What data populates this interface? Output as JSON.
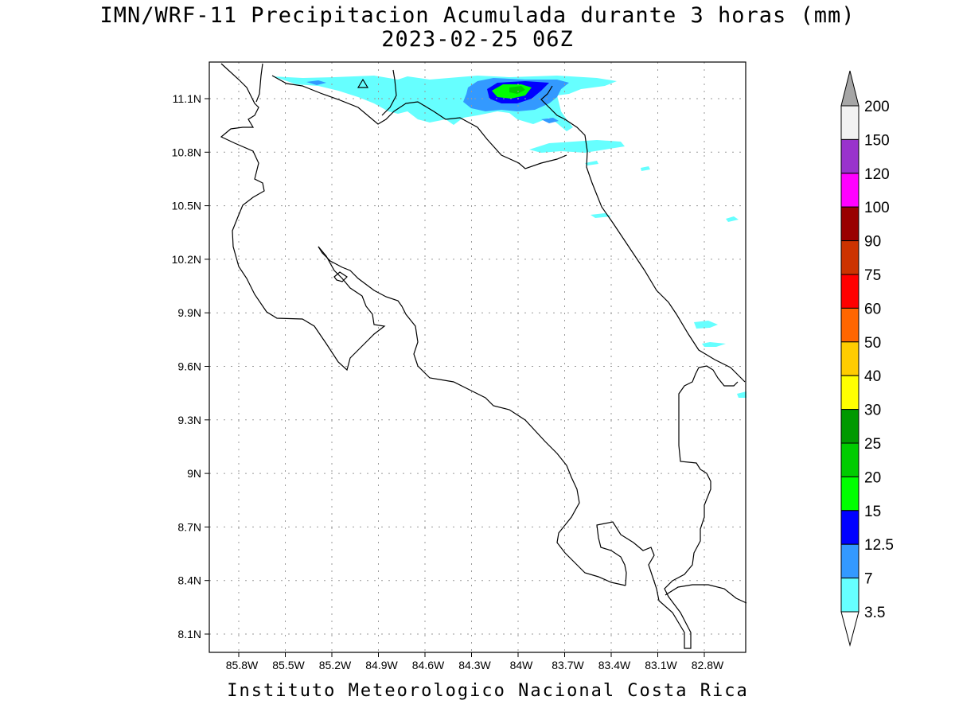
{
  "title": {
    "line1": "IMN/WRF-11 Precipitacion Acumulada durante 3 horas (mm)",
    "line2": "2023-02-25 06Z"
  },
  "footer": "Instituto Meteorologico Nacional Costa Rica",
  "map": {
    "lat_ticks": [
      "11.1N",
      "10.8N",
      "10.5N",
      "10.2N",
      "9.9N",
      "9.6N",
      "9.3N",
      "9N",
      "8.7N",
      "8.4N",
      "8.1N"
    ],
    "lon_ticks": [
      "85.8W",
      "85.5W",
      "85.2W",
      "84.9W",
      "84.6W",
      "84.3W",
      "84W",
      "83.7W",
      "83.4W",
      "83.1W",
      "82.8W"
    ],
    "grid": true
  },
  "colorbar": {
    "labels": [
      "200",
      "150",
      "120",
      "100",
      "90",
      "75",
      "60",
      "50",
      "40",
      "30",
      "25",
      "20",
      "15",
      "12.5",
      "7",
      "3.5"
    ],
    "colors": [
      "#f2f2f2",
      "#9933cc",
      "#ff00ff",
      "#990000",
      "#cc3300",
      "#ff0000",
      "#ff6600",
      "#ffcc00",
      "#ffff00",
      "#009900",
      "#00cc00",
      "#00ff00",
      "#0000ff",
      "#3399ff",
      "#66ffff"
    ],
    "over_color": "#a6a6a6",
    "under_color": "#ffffff"
  }
}
